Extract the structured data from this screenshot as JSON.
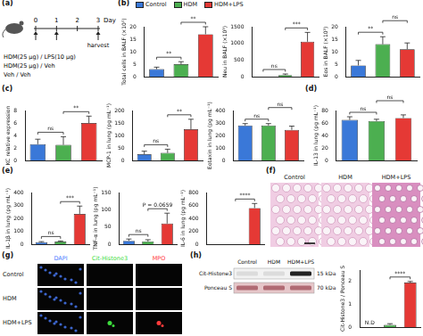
{
  "panels": [
    {
      "label": "(a)"
    },
    {
      "label": "(b)"
    },
    {
      "label": "(c)"
    },
    {
      "label": "(d)"
    },
    {
      "label": "(e)"
    },
    {
      "label": "(f)"
    },
    {
      "label": "(g)"
    },
    {
      "label": "(h)"
    }
  ],
  "legend": [
    {
      "name": "Control",
      "color": "#3a78d8"
    },
    {
      "name": "HDM",
      "color": "#4caf50"
    },
    {
      "name": "HDM+LPS",
      "color": "#e53935"
    }
  ],
  "schematic": {
    "days": [
      0,
      1,
      2,
      3
    ],
    "day_label": "Day",
    "harvest": "harvest",
    "treatments": [
      "HDM(25 μg) / LPS(10 μg)",
      "HDM(25 μg) / Veh",
      "Veh / Veh"
    ]
  },
  "histology": {
    "labels": [
      "Control",
      "HDM",
      "HDM+LPS"
    ]
  },
  "immunofluorescence": {
    "columns": [
      {
        "name": "DAPI",
        "color": "#4a7dff"
      },
      {
        "name": "Cit-Histone3",
        "color": "#3ddc3d"
      },
      {
        "name": "MPO",
        "color": "#ff3b3b"
      }
    ],
    "rows": [
      "Control",
      "HDM",
      "HDM+LPS"
    ]
  },
  "blot": {
    "lanes": [
      "Control",
      "HDM",
      "HDM+LPS"
    ],
    "rows": [
      {
        "name": "Cit-Histone3",
        "size": "15 kDa"
      },
      {
        "name": "Ponceau S",
        "size": "70 kDa"
      }
    ]
  },
  "chart_data": [
    {
      "type": "bar",
      "y_label": "Total cells in BALF (×10⁵)",
      "categories": [
        "Control",
        "HDM",
        "HDM+LPS"
      ],
      "colors": [
        "#3a78d8",
        "#4caf50",
        "#e53935"
      ],
      "values": [
        3,
        5,
        17
      ],
      "errors": [
        0.8,
        1,
        3
      ],
      "ylim": [
        0,
        20
      ],
      "yticks": [
        0,
        5,
        10,
        15,
        20
      ],
      "tick_labels": "y",
      "significance": [
        {
          "pair": [
            0,
            1
          ],
          "label": "**"
        },
        {
          "pair": [
            1,
            2
          ],
          "label": "**"
        }
      ]
    },
    {
      "type": "bar",
      "y_label": "Neu in BALF (×10³)",
      "categories": [
        "Control",
        "HDM",
        "HDM+LPS"
      ],
      "colors": [
        "#3a78d8",
        "#4caf50",
        "#e53935"
      ],
      "values": [
        0,
        50,
        1050
      ],
      "errors": [
        0,
        30,
        280
      ],
      "ylim": [
        0,
        1500
      ],
      "yticks": [
        0,
        500,
        1000,
        1500
      ],
      "tick_labels": "y",
      "significance": [
        {
          "pair": [
            0,
            1
          ],
          "label": "ns"
        },
        {
          "pair": [
            1,
            2
          ],
          "label": "***"
        }
      ]
    },
    {
      "type": "bar",
      "y_label": "Eos in BALF (×10³)",
      "categories": [
        "Control",
        "HDM",
        "HDM+LPS"
      ],
      "colors": [
        "#3a78d8",
        "#4caf50",
        "#e53935"
      ],
      "values": [
        4.5,
        13,
        11
      ],
      "errors": [
        2,
        3,
        2.5
      ],
      "ylim": [
        0,
        20
      ],
      "yticks": [
        0,
        5,
        10,
        15,
        20
      ],
      "tick_labels": "y",
      "significance": [
        {
          "pair": [
            0,
            1
          ],
          "label": "**"
        },
        {
          "pair": [
            1,
            2
          ],
          "label": "ns"
        }
      ]
    },
    {
      "type": "bar",
      "y_label": "KC relative expression",
      "categories": [
        "Control",
        "HDM",
        "HDM+LPS"
      ],
      "colors": [
        "#3a78d8",
        "#4caf50",
        "#e53935"
      ],
      "values": [
        2.6,
        2.5,
        6
      ],
      "errors": [
        0.8,
        1.3,
        1.1
      ],
      "ylim": [
        0,
        8
      ],
      "yticks": [
        0,
        2,
        4,
        6,
        8
      ],
      "tick_labels": "y",
      "significance": [
        {
          "pair": [
            0,
            1
          ],
          "label": "ns"
        },
        {
          "pair": [
            1,
            2
          ],
          "label": "**"
        }
      ]
    },
    {
      "type": "bar",
      "y_label": "MCP-1 in lung (pg mL⁻¹)",
      "categories": [
        "Control",
        "HDM",
        "HDM+LPS"
      ],
      "colors": [
        "#3a78d8",
        "#4caf50",
        "#e53935"
      ],
      "values": [
        25,
        30,
        125
      ],
      "errors": [
        12,
        15,
        40
      ],
      "ylim": [
        0,
        200
      ],
      "yticks": [
        0,
        50,
        100,
        150,
        200
      ],
      "tick_labels": "y",
      "significance": [
        {
          "pair": [
            0,
            1
          ],
          "label": "ns"
        },
        {
          "pair": [
            1,
            2
          ],
          "label": "**"
        }
      ]
    },
    {
      "type": "bar",
      "y_label": "Eotaxin in lung (pg mL⁻¹)",
      "categories": [
        "Control",
        "HDM",
        "HDM+LPS"
      ],
      "colors": [
        "#3a78d8",
        "#4caf50",
        "#e53935"
      ],
      "values": [
        280,
        280,
        245
      ],
      "errors": [
        15,
        15,
        30
      ],
      "ylim": [
        0,
        400
      ],
      "yticks": [
        0,
        100,
        200,
        300,
        400
      ],
      "tick_labels": "y",
      "significance": [
        {
          "pair": [
            0,
            1
          ],
          "label": "ns"
        },
        {
          "pair": [
            1,
            2
          ],
          "label": "ns"
        }
      ]
    },
    {
      "type": "bar",
      "y_label": "IL-13 in lung (pg mL⁻¹)",
      "categories": [
        "Control",
        "HDM",
        "HDM+LPS"
      ],
      "colors": [
        "#3a78d8",
        "#4caf50",
        "#e53935"
      ],
      "values": [
        65,
        63,
        68
      ],
      "errors": [
        5,
        3,
        5
      ],
      "ylim": [
        0,
        80
      ],
      "yticks": [
        0,
        20,
        40,
        60,
        80
      ],
      "tick_labels": "y",
      "significance": [
        {
          "pair": [
            0,
            1
          ],
          "label": "ns"
        },
        {
          "pair": [
            1,
            2
          ],
          "label": "ns"
        }
      ]
    },
    {
      "type": "bar",
      "y_label": "IL-1β in lung (pg mL⁻¹)",
      "categories": [
        "Control",
        "HDM",
        "HDM+LPS"
      ],
      "colors": [
        "#3a78d8",
        "#4caf50",
        "#e53935"
      ],
      "values": [
        15,
        20,
        235
      ],
      "errors": [
        5,
        5,
        60
      ],
      "ylim": [
        0,
        400
      ],
      "yticks": [
        0,
        100,
        200,
        300,
        400
      ],
      "tick_labels": "y",
      "significance": [
        {
          "pair": [
            0,
            1
          ],
          "label": "ns"
        },
        {
          "pair": [
            1,
            2
          ],
          "label": "***"
        }
      ]
    },
    {
      "type": "bar",
      "y_label": "TNF-α in lung (pg mL⁻¹)",
      "categories": [
        "Control",
        "HDM",
        "HDM+LPS"
      ],
      "colors": [
        "#3a78d8",
        "#4caf50",
        "#e53935"
      ],
      "values": [
        10,
        8,
        60
      ],
      "errors": [
        5,
        5,
        30
      ],
      "ylim": [
        0,
        150
      ],
      "yticks": [
        0,
        50,
        100,
        150
      ],
      "tick_labels": "y",
      "significance": [
        {
          "pair": [
            0,
            1
          ],
          "label": "ns"
        },
        {
          "pair": [
            1,
            2
          ],
          "label": "P = 0.0659"
        }
      ]
    },
    {
      "type": "bar",
      "y_label": "IL-6 in lung (pg mL⁻¹)",
      "categories": [
        "Control",
        "HDM",
        "HDM+LPS"
      ],
      "colors": [
        "#3a78d8",
        "#4caf50",
        "#e53935"
      ],
      "values": [
        0,
        0,
        560
      ],
      "errors": [
        0,
        0,
        70
      ],
      "ylim": [
        0,
        800
      ],
      "yticks": [
        0,
        200,
        400,
        600,
        800
      ],
      "tick_labels": "y",
      "significance": [
        {
          "pair": [
            1,
            2
          ],
          "label": "****"
        }
      ]
    },
    {
      "type": "bar",
      "y_label": "Cit-Histone3 / Ponceau S",
      "categories": [
        "Control",
        "HDM",
        "HDM+LPS"
      ],
      "colors": [
        "#3a78d8",
        "#4caf50",
        "#e53935"
      ],
      "values": [
        null,
        0.1,
        1.95
      ],
      "errors": [
        null,
        0.05,
        0.05
      ],
      "ylim": [
        0,
        2.5
      ],
      "yticks": [
        0,
        1,
        2
      ],
      "tick_labels": "y",
      "annotations": [
        {
          "index": 0,
          "text": "N.D"
        }
      ],
      "significance": [
        {
          "pair": [
            1,
            2
          ],
          "label": "****"
        }
      ]
    }
  ]
}
